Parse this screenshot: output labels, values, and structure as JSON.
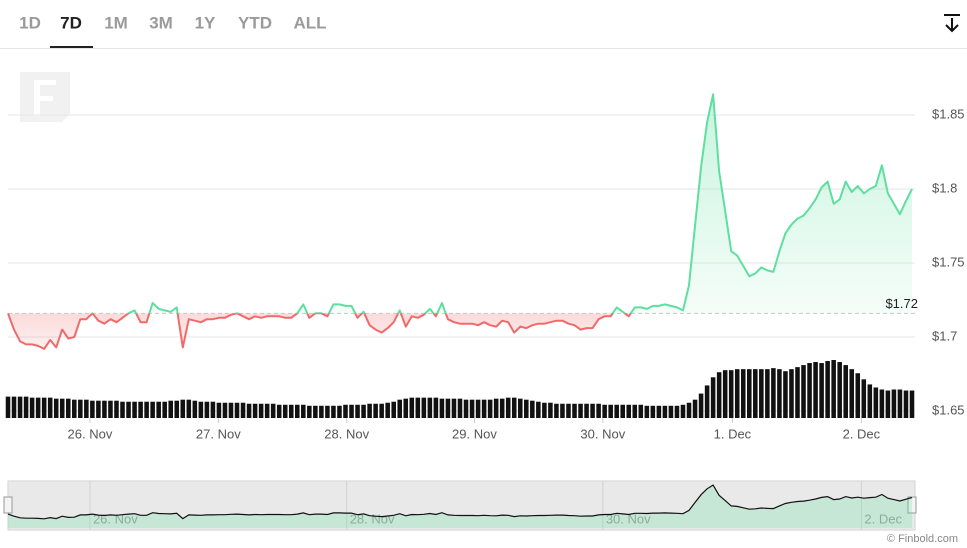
{
  "tabs": [
    {
      "label": "1D"
    },
    {
      "label": "7D",
      "selected": true
    },
    {
      "label": "1M"
    },
    {
      "label": "3M"
    },
    {
      "label": "1Y"
    },
    {
      "label": "YTD"
    },
    {
      "label": "ALL"
    }
  ],
  "credit": "© Finbold.com",
  "chart_data": {
    "type": "line",
    "xlim": [
      0,
      150
    ],
    "ylim": [
      1.645,
      1.895
    ],
    "yticks": [
      {
        "value": 1.65,
        "label": "$1.65"
      },
      {
        "value": 1.7,
        "label": "$1.7"
      },
      {
        "value": 1.75,
        "label": "$1.75"
      },
      {
        "value": 1.8,
        "label": "$1.8"
      },
      {
        "value": 1.85,
        "label": "$1.85"
      }
    ],
    "xticks": [
      {
        "value": 13.6,
        "label": "26. Nov"
      },
      {
        "value": 34.9,
        "label": "27. Nov"
      },
      {
        "value": 56.2,
        "label": "28. Nov"
      },
      {
        "value": 77.4,
        "label": "29. Nov"
      },
      {
        "value": 98.7,
        "label": "30. Nov"
      },
      {
        "value": 120.2,
        "label": "1. Dec"
      },
      {
        "value": 141.6,
        "label": "2. Dec"
      }
    ],
    "grid": true,
    "reference": {
      "value": 1.716,
      "label": "$1.72"
    },
    "series": [
      {
        "up_color": "#5edfa0",
        "down_color": "#f06a6a",
        "values": [
          1.716,
          1.705,
          1.697,
          1.695,
          1.695,
          1.694,
          1.692,
          1.698,
          1.693,
          1.705,
          1.699,
          1.7,
          1.712,
          1.712,
          1.716,
          1.711,
          1.709,
          1.712,
          1.71,
          1.713,
          1.716,
          1.718,
          1.71,
          1.71,
          1.723,
          1.719,
          1.718,
          1.717,
          1.72,
          1.693,
          1.712,
          1.711,
          1.71,
          1.712,
          1.712,
          1.713,
          1.713,
          1.715,
          1.716,
          1.714,
          1.712,
          1.714,
          1.713,
          1.714,
          1.714,
          1.714,
          1.713,
          1.713,
          1.716,
          1.722,
          1.713,
          1.716,
          1.716,
          1.714,
          1.722,
          1.722,
          1.721,
          1.721,
          1.713,
          1.717,
          1.708,
          1.705,
          1.703,
          1.706,
          1.71,
          1.718,
          1.707,
          1.714,
          1.713,
          1.715,
          1.719,
          1.714,
          1.723,
          1.712,
          1.71,
          1.709,
          1.709,
          1.709,
          1.708,
          1.71,
          1.708,
          1.707,
          1.711,
          1.71,
          1.703,
          1.707,
          1.706,
          1.708,
          1.709,
          1.709,
          1.71,
          1.711,
          1.711,
          1.709,
          1.708,
          1.705,
          1.706,
          1.706,
          1.712,
          1.714,
          1.714,
          1.72,
          1.717,
          1.714,
          1.72,
          1.72,
          1.719,
          1.721,
          1.721,
          1.722,
          1.721,
          1.72,
          1.718,
          1.735,
          1.775,
          1.815,
          1.845,
          1.864,
          1.812,
          1.785,
          1.758,
          1.755,
          1.748,
          1.741,
          1.743,
          1.747,
          1.745,
          1.744,
          1.758,
          1.77,
          1.776,
          1.78,
          1.782,
          1.787,
          1.793,
          1.801,
          1.805,
          1.79,
          1.793,
          1.805,
          1.798,
          1.802,
          1.797,
          1.8,
          1.802,
          1.816,
          1.797,
          1.79,
          1.783,
          1.792,
          1.8
        ]
      }
    ],
    "volume": {
      "color": "#111111",
      "values": [
        21,
        21,
        21,
        21,
        20,
        20,
        20,
        20,
        19,
        19,
        19,
        18,
        18,
        18,
        17,
        17,
        17,
        17,
        17,
        16,
        16,
        16,
        16,
        16,
        16,
        16,
        16,
        17,
        17,
        18,
        18,
        17,
        16,
        16,
        16,
        15,
        15,
        15,
        15,
        15,
        14,
        14,
        14,
        14,
        14,
        13,
        13,
        13,
        13,
        13,
        12,
        12,
        12,
        12,
        12,
        12,
        13,
        13,
        13,
        13,
        14,
        14,
        14,
        15,
        16,
        18,
        19,
        20,
        20,
        20,
        20,
        20,
        19,
        19,
        19,
        19,
        18,
        18,
        18,
        18,
        18,
        19,
        19,
        20,
        20,
        19,
        18,
        17,
        16,
        15,
        15,
        14,
        14,
        14,
        14,
        14,
        14,
        14,
        14,
        13,
        13,
        13,
        13,
        13,
        13,
        13,
        12,
        12,
        12,
        12,
        12,
        12,
        13,
        15,
        18,
        24,
        32,
        40,
        45,
        47,
        47,
        48,
        48,
        48,
        48,
        48,
        48,
        49,
        48,
        46,
        48,
        50,
        52,
        54,
        55,
        54,
        56,
        57,
        55,
        52,
        48,
        44,
        38,
        33,
        30,
        28,
        27,
        28,
        28,
        27,
        27
      ]
    }
  }
}
